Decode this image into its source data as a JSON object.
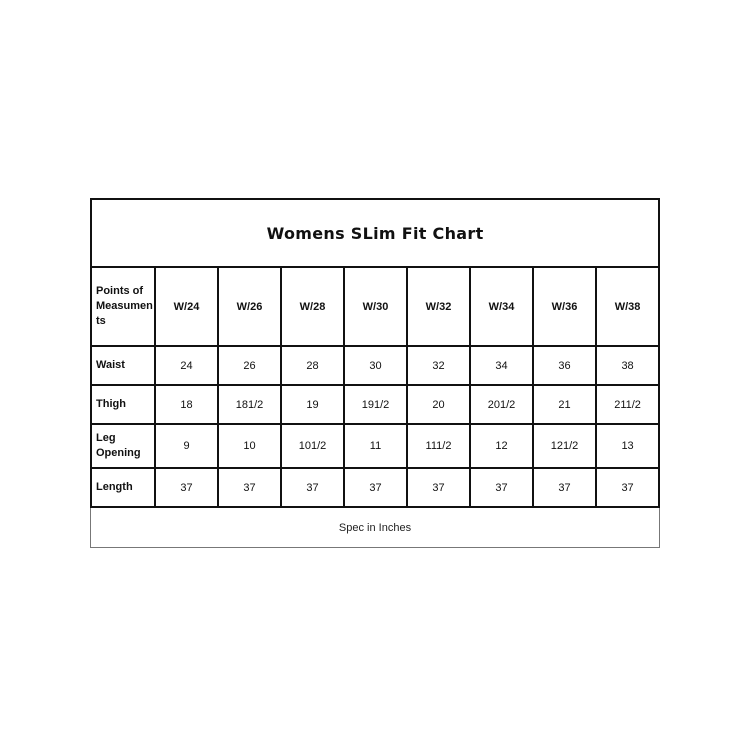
{
  "title": "Womens SLim Fit Chart",
  "corner_label": "Points of Measumen ts",
  "sizes": [
    "W/24",
    "W/26",
    "W/28",
    "W/30",
    "W/32",
    "W/34",
    "W/36",
    "W/38"
  ],
  "rows": [
    {
      "label": "Waist",
      "values": [
        "24",
        "26",
        "28",
        "30",
        "32",
        "34",
        "36",
        "38"
      ]
    },
    {
      "label": "Thigh",
      "values": [
        "18",
        "181/2",
        "19",
        "191/2",
        "20",
        "201/2",
        "21",
        "211/2"
      ]
    },
    {
      "label": "Leg Opening",
      "values": [
        "9",
        "10",
        "101/2",
        "11",
        "111/2",
        "12",
        "121/2",
        "13"
      ]
    },
    {
      "label": "Length",
      "values": [
        "37",
        "37",
        "37",
        "37",
        "37",
        "37",
        "37",
        "37"
      ]
    }
  ],
  "footer": "Spec in Inches"
}
